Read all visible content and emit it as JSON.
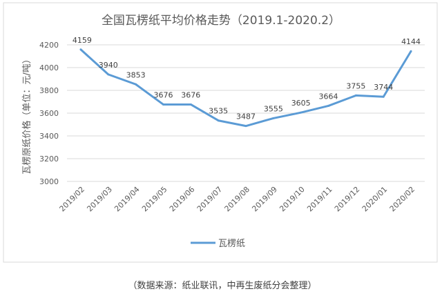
{
  "chart_data": {
    "type": "line",
    "title": "全国瓦楞纸平均价格走势（2019.1-2020.2）",
    "xlabel": "",
    "ylabel": "瓦楞原纸价格（单位：元/吨）",
    "categories": [
      "2019/02",
      "2019/03",
      "2019/04",
      "2019/05",
      "2019/06",
      "2019/07",
      "2019/08",
      "2019/09",
      "2019/10",
      "2019/11",
      "2019/12",
      "2020/01",
      "2020/02"
    ],
    "series": [
      {
        "name": "瓦楞纸",
        "values": [
          4159,
          3940,
          3853,
          3676,
          3676,
          3535,
          3487,
          3555,
          3605,
          3664,
          3755,
          3744,
          4144
        ],
        "color": "#5b9bd5"
      }
    ],
    "ylim": [
      3000,
      4200
    ],
    "yticks": [
      3000,
      3200,
      3400,
      3600,
      3800,
      4000,
      4200
    ],
    "grid": true,
    "legend": "bottom"
  },
  "caption": "（数据来源：纸业联讯，中再生废纸分会整理）"
}
